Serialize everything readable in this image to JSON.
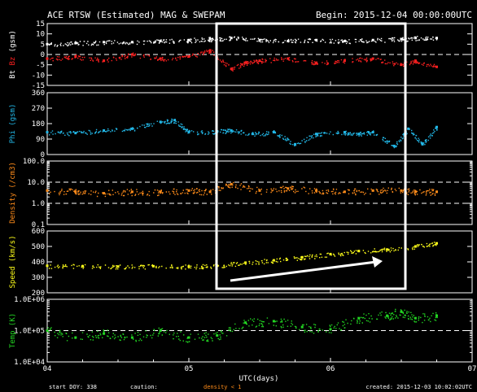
{
  "header": {
    "title": "ACE RTSW (Estimated) MAG & SWEPAM",
    "begin": "Begin: 2015-12-04 00:00:00UTC"
  },
  "footer": {
    "start": "start DOY: 338",
    "caution": "caution:",
    "density_note": "density < 1",
    "created": "created: 2015-12-03 10:02:02UTC"
  },
  "colors": {
    "bt": "#ffffff",
    "bz": "#ff2020",
    "phi": "#22b8e8",
    "density": "#ff8c1a",
    "speed": "#ffff1a",
    "temp": "#22d622",
    "annotation": "#ffffff"
  },
  "chart_data": {
    "type": "scatter",
    "x_axis": {
      "label": "UTC(days)",
      "ticks": [
        "04",
        "05",
        "06",
        "07"
      ],
      "range_days": [
        0,
        3
      ]
    },
    "panels": [
      {
        "id": "mag",
        "ylabel": "Bt Bz (gsm)",
        "ylabel_parts": [
          {
            "text": "Bt",
            "color": "#ffffff"
          },
          {
            "text": "Bz",
            "color": "#ff2020"
          },
          {
            "text": "(gsm)",
            "color": "#ffffff"
          }
        ],
        "ylim": [
          -15,
          15
        ],
        "ticks": [
          "15",
          "10",
          "5",
          "0",
          "-5",
          "-10",
          "-15"
        ],
        "tick_values": [
          15,
          10,
          5,
          0,
          -5,
          -10,
          -15
        ],
        "reference_lines": [
          0
        ],
        "series": [
          {
            "name": "Bt",
            "color": "#ffffff",
            "x": [
              0.0,
              0.2,
              0.4,
              0.6,
              0.8,
              1.0,
              1.15,
              1.3,
              1.5,
              1.7,
              1.9,
              2.1,
              2.3,
              2.5,
              2.6,
              2.75
            ],
            "y": [
              5,
              5.5,
              6,
              6,
              6.5,
              7,
              7.5,
              8,
              7,
              6.5,
              7,
              6.5,
              7,
              7.5,
              8,
              8
            ]
          },
          {
            "name": "Bz",
            "color": "#ff2020",
            "x": [
              0.0,
              0.2,
              0.4,
              0.6,
              0.8,
              1.0,
              1.15,
              1.3,
              1.4,
              1.5,
              1.7,
              1.9,
              2.1,
              2.3,
              2.5,
              2.6,
              2.75
            ],
            "y": [
              -2,
              -1,
              -3,
              0,
              -2,
              -1,
              2,
              -7,
              -4,
              -3,
              -2,
              -4,
              -3,
              -2,
              -5,
              -3,
              -6
            ]
          }
        ]
      },
      {
        "id": "phi",
        "ylabel": "Phi (gsm)",
        "ylim": [
          0,
          360
        ],
        "ticks": [
          "360",
          "270",
          "180",
          "90",
          "0"
        ],
        "tick_values": [
          360,
          270,
          180,
          90,
          0
        ],
        "series": [
          {
            "name": "Phi",
            "color": "#22b8e8",
            "x": [
              0.0,
              0.2,
              0.4,
              0.6,
              0.8,
              0.9,
              1.0,
              1.2,
              1.3,
              1.45,
              1.6,
              1.75,
              1.9,
              2.1,
              2.2,
              2.3,
              2.45,
              2.55,
              2.65,
              2.75
            ],
            "y": [
              130,
              125,
              140,
              150,
              190,
              200,
              130,
              135,
              140,
              120,
              130,
              60,
              120,
              130,
              120,
              130,
              50,
              150,
              60,
              160
            ]
          }
        ]
      },
      {
        "id": "density",
        "ylabel": "Density (/cm3)",
        "scale": "log",
        "ylim": [
          0.1,
          100
        ],
        "ticks": [
          "100.0",
          "10.0",
          "1.0",
          "0.1"
        ],
        "tick_values": [
          100,
          10,
          1,
          0.1
        ],
        "reference_lines": [
          10,
          1
        ],
        "series": [
          {
            "name": "Density",
            "color": "#ff8c1a",
            "x": [
              0.0,
              0.2,
              0.4,
              0.6,
              0.8,
              1.0,
              1.15,
              1.3,
              1.5,
              1.7,
              1.9,
              2.1,
              2.3,
              2.5,
              2.6,
              2.75
            ],
            "y": [
              4,
              3.5,
              3,
              3.5,
              3.5,
              4,
              3.5,
              8,
              4,
              5,
              4,
              3.5,
              4,
              4,
              3.5,
              3.5
            ]
          }
        ]
      },
      {
        "id": "speed",
        "ylabel": "Speed (km/s)",
        "ylim": [
          200,
          600
        ],
        "ticks": [
          "600",
          "500",
          "400",
          "300",
          "200"
        ],
        "tick_values": [
          600,
          500,
          400,
          300,
          200
        ],
        "series": [
          {
            "name": "Speed",
            "color": "#ffff1a",
            "x": [
              0.0,
              0.25,
              0.5,
              0.75,
              1.0,
              1.2,
              1.4,
              1.6,
              1.8,
              2.0,
              2.2,
              2.4,
              2.6,
              2.75
            ],
            "y": [
              375,
              372,
              370,
              372,
              370,
              375,
              395,
              410,
              430,
              450,
              470,
              480,
              500,
              520
            ]
          }
        ]
      },
      {
        "id": "temp",
        "ylabel": "Temp (K)",
        "scale": "log",
        "ylim": [
          10000,
          1000000
        ],
        "ticks": [
          "1.0E+06",
          "1.0E+05",
          "1.0E+04"
        ],
        "tick_values": [
          1000000,
          100000,
          10000
        ],
        "reference_lines": [
          100000
        ],
        "series": [
          {
            "name": "Temp",
            "color": "#22d622",
            "x": [
              0.0,
              0.2,
              0.4,
              0.6,
              0.8,
              1.0,
              1.2,
              1.4,
              1.6,
              1.8,
              2.0,
              2.2,
              2.4,
              2.5,
              2.6,
              2.75
            ],
            "y": [
              100000,
              60000,
              80000,
              60000,
              100000,
              60000,
              70000,
              180000,
              200000,
              130000,
              110000,
              250000,
              300000,
              400000,
              250000,
              300000
            ]
          }
        ]
      }
    ]
  }
}
